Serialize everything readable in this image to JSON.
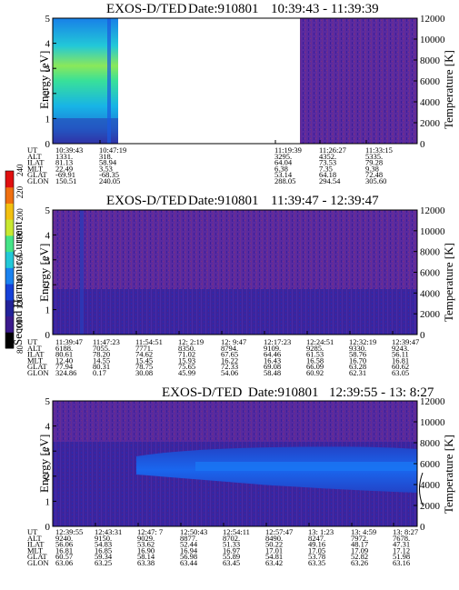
{
  "colorbar": {
    "label": "Second Harmonic Current",
    "ticks": [
      "80",
      "100",
      "120",
      "140",
      "160",
      "180",
      "200",
      "220",
      "240"
    ],
    "colors": [
      "#000000",
      "#3b1a8c",
      "#23229a",
      "#1640d8",
      "#1a82f0",
      "#22c8d8",
      "#44e488",
      "#c8e830",
      "#f2c010",
      "#f07010",
      "#e01010"
    ]
  },
  "panels": [
    {
      "title_left": "EXOS-D/TED",
      "title_date": "Date:910801",
      "title_time": "10:39:43 - 11:39:39",
      "ylabel": "Energy [eV]",
      "y2label": "Temperature [K]",
      "yticks": [
        "0",
        "1",
        "2",
        "3",
        "4",
        "5"
      ],
      "y2ticks": [
        "0",
        "2000",
        "4000",
        "6000",
        "8000",
        "10000",
        "12000"
      ],
      "data_gap": true,
      "row_labels": [
        "UT",
        "ALT",
        "ILAT",
        "MLT",
        "GLAT",
        "GLON"
      ],
      "columns": [
        {
          "UT": "10:39:43",
          "ALT": "1331.",
          "ILAT": "81.13",
          "MLT": "22.49",
          "GLAT": "-69.91",
          "GLON": "150.51"
        },
        {
          "UT": "10:47:19",
          "ALT": "318.",
          "ILAT": "58.94",
          "MLT": "3.53",
          "GLAT": "-68.35",
          "GLON": "240.05"
        },
        {
          "UT": "11:19:39",
          "ALT": "3295.",
          "ILAT": "64.04",
          "MLT": "6.38",
          "GLAT": "53.14",
          "GLON": "288.05"
        },
        {
          "UT": "11:26:27",
          "ALT": "4352.",
          "ILAT": "73.53",
          "MLT": "7.35",
          "GLAT": "64.18",
          "GLON": "294.54"
        },
        {
          "UT": "11:33:15",
          "ALT": "5335.",
          "ILAT": "79.28",
          "MLT": "9.38",
          "GLAT": "72.48",
          "GLON": "305.60"
        }
      ]
    },
    {
      "title_left": "EXOS-D/TED",
      "title_date": "Date:910801",
      "title_time": "11:39:47 - 12:39:47",
      "ylabel": "Energy [eV]",
      "y2label": "Temperature [K]",
      "yticks": [
        "0",
        "1",
        "2",
        "3",
        "4",
        "5"
      ],
      "y2ticks": [
        "0",
        "2000",
        "4000",
        "6000",
        "8000",
        "10000",
        "12000"
      ],
      "data_gap": false,
      "row_labels": [
        "UT",
        "ALT",
        "ILAT",
        "MLT",
        "GLAT",
        "GLON"
      ],
      "columns": [
        {
          "UT": "11:39:47",
          "ALT": "6188.",
          "ILAT": "80.61",
          "MLT": "12.40",
          "GLAT": "77.94",
          "GLON": "324.86"
        },
        {
          "UT": "11:47:23",
          "ALT": "7055.",
          "ILAT": "78.20",
          "MLT": "14.55",
          "GLAT": "80.31",
          "GLON": "0.17"
        },
        {
          "UT": "11:54:51",
          "ALT": "7771.",
          "ILAT": "74.62",
          "MLT": "15.45",
          "GLAT": "78.75",
          "GLON": "30.08"
        },
        {
          "UT": "12: 2:19",
          "ALT": "8350.",
          "ILAT": "71.02",
          "MLT": "15.93",
          "GLAT": "75.65",
          "GLON": "45.99"
        },
        {
          "UT": "12: 9:47",
          "ALT": "8794.",
          "ILAT": "67.65",
          "MLT": "16.22",
          "GLAT": "72.33",
          "GLON": "54.06"
        },
        {
          "UT": "12:17:23",
          "ALT": "9109.",
          "ILAT": "64.46",
          "MLT": "16.43",
          "GLAT": "69.08",
          "GLON": "58.48"
        },
        {
          "UT": "12:24:51",
          "ALT": "9285.",
          "ILAT": "61.53",
          "MLT": "16.58",
          "GLAT": "66.09",
          "GLON": "60.92"
        },
        {
          "UT": "12:32:19",
          "ALT": "9330.",
          "ILAT": "58.76",
          "MLT": "16.70",
          "GLAT": "63.28",
          "GLON": "62.31"
        },
        {
          "UT": "12:39:47",
          "ALT": "9243.",
          "ILAT": "56.11",
          "MLT": "16.81",
          "GLAT": "60.62",
          "GLON": "63.05"
        }
      ]
    },
    {
      "title_left": "EXOS-D/TED",
      "title_date": "Date:910801",
      "title_time": "12:39:55 - 13: 8:27",
      "ylabel": "Energy [eV]",
      "y2label": "Temperature [K]",
      "yticks": [
        "0",
        "1",
        "2",
        "3",
        "4",
        "5"
      ],
      "y2ticks": [
        "0",
        "2000",
        "4000",
        "6000",
        "8000",
        "10000",
        "12000"
      ],
      "data_gap": false,
      "row_labels": [
        "UT",
        "ALT",
        "ILAT",
        "MLT",
        "GLAT",
        "GLON"
      ],
      "columns": [
        {
          "UT": "12:39:55",
          "ALT": "9240.",
          "ILAT": "56.06",
          "MLT": "16.81",
          "GLAT": "60.57",
          "GLON": "63.06"
        },
        {
          "UT": "12:43:31",
          "ALT": "9150.",
          "ILAT": "54.83",
          "MLT": "16.85",
          "GLAT": "59.34",
          "GLON": "63.25"
        },
        {
          "UT": "12:47: 7",
          "ALT": "9029.",
          "ILAT": "53.62",
          "MLT": "16.90",
          "GLAT": "58.14",
          "GLON": "63.38"
        },
        {
          "UT": "12:50:43",
          "ALT": "8877.",
          "ILAT": "52.44",
          "MLT": "16.94",
          "GLAT": "56.98",
          "GLON": "63.44"
        },
        {
          "UT": "12:54:11",
          "ALT": "8702.",
          "ILAT": "51.33",
          "MLT": "16.97",
          "GLAT": "55.89",
          "GLON": "63.45"
        },
        {
          "UT": "12:57:47",
          "ALT": "8490.",
          "ILAT": "50.22",
          "MLT": "17.01",
          "GLAT": "54.81",
          "GLON": "63.42"
        },
        {
          "UT": "13: 1:23",
          "ALT": "8247.",
          "ILAT": "49.16",
          "MLT": "17.05",
          "GLAT": "53.78",
          "GLON": "63.35"
        },
        {
          "UT": "13: 4:59",
          "ALT": "7972.",
          "ILAT": "48.17",
          "MLT": "17.09",
          "GLAT": "52.82",
          "GLON": "63.26"
        },
        {
          "UT": "13: 8:27",
          "ALT": "7678.",
          "ILAT": "47.31",
          "MLT": "17.12",
          "GLAT": "51.98",
          "GLON": "63.16"
        }
      ]
    }
  ],
  "chart_data": [
    {
      "type": "heatmap",
      "title": "EXOS-D/TED   Date:910801   10:39:43 - 11:39:39",
      "xlabel": "UT",
      "ylabel": "Energy [eV]",
      "y2label": "Temperature [K]",
      "ylim": [
        0,
        5
      ],
      "y2lim": [
        0,
        12000
      ],
      "colorbar_range": [
        80,
        240
      ],
      "grid": false,
      "x_ticks": [
        "10:39:43",
        "10:47:19",
        "11:19:39",
        "11:26:27",
        "11:33:15"
      ],
      "data_gap_between": [
        "10:47:19",
        "11:19:39"
      ]
    },
    {
      "type": "heatmap",
      "title": "EXOS-D/TED   Date:910801   11:39:47 - 12:39:47",
      "xlabel": "UT",
      "ylabel": "Energy [eV]",
      "y2label": "Temperature [K]",
      "ylim": [
        0,
        5
      ],
      "y2lim": [
        0,
        12000
      ],
      "colorbar_range": [
        80,
        240
      ],
      "grid": false,
      "x_ticks": [
        "11:39:47",
        "11:47:23",
        "11:54:51",
        "12: 2:19",
        "12: 9:47",
        "12:17:23",
        "12:24:51",
        "12:32:19",
        "12:39:47"
      ]
    },
    {
      "type": "heatmap",
      "title": "EXOS-D/TED   Date:910801   12:39:55 - 13: 8:27",
      "xlabel": "UT",
      "ylabel": "Energy [eV]",
      "y2label": "Temperature [K]",
      "ylim": [
        0,
        5
      ],
      "y2lim": [
        0,
        12000
      ],
      "colorbar_range": [
        80,
        240
      ],
      "grid": false,
      "x_ticks": [
        "12:39:55",
        "12:43:31",
        "12:47: 7",
        "12:50:43",
        "12:54:11",
        "12:57:47",
        "13: 1:23",
        "13: 4:59",
        "13: 8:27"
      ]
    }
  ]
}
